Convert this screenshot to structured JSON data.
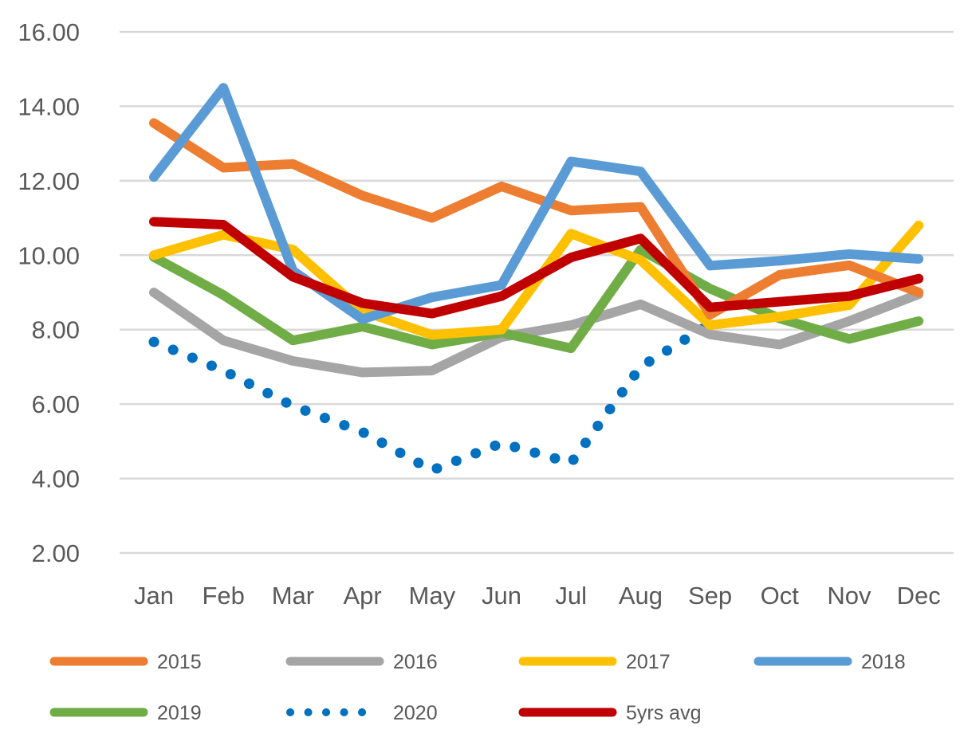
{
  "chart_data": {
    "type": "line",
    "title": "",
    "xlabel": "",
    "ylabel": "",
    "ylim": [
      2,
      16
    ],
    "yticks": [
      "2.00",
      "4.00",
      "6.00",
      "8.00",
      "10.00",
      "12.00",
      "14.00",
      "16.00"
    ],
    "ytick_values": [
      2,
      4,
      6,
      8,
      10,
      12,
      14,
      16
    ],
    "grid": true,
    "legend_position": "bottom",
    "categories": [
      "Jan",
      "Feb",
      "Mar",
      "Apr",
      "May",
      "Jun",
      "Jul",
      "Aug",
      "Sep",
      "Oct",
      "Nov",
      "Dec"
    ],
    "series": [
      {
        "name": "2015",
        "color": "#ED7D31",
        "style": "solid",
        "values": [
          13.55,
          12.35,
          12.45,
          11.6,
          11.0,
          11.85,
          11.2,
          11.3,
          8.4,
          9.47,
          9.73,
          9.0
        ]
      },
      {
        "name": "2016",
        "color": "#A5A5A5",
        "style": "solid",
        "values": [
          9.0,
          7.71,
          7.16,
          6.85,
          6.9,
          7.8,
          8.12,
          8.68,
          7.87,
          7.6,
          8.23,
          8.95
        ]
      },
      {
        "name": "2017",
        "color": "#FFC000",
        "style": "solid",
        "values": [
          10.0,
          10.55,
          10.15,
          8.5,
          7.86,
          8.0,
          10.58,
          9.87,
          8.12,
          8.35,
          8.66,
          10.8
        ]
      },
      {
        "name": "2018",
        "color": "#5B9BD5",
        "style": "solid",
        "values": [
          12.1,
          14.5,
          9.58,
          8.28,
          8.87,
          9.2,
          12.52,
          12.25,
          9.72,
          9.85,
          10.03,
          9.9
        ]
      },
      {
        "name": "2019",
        "color": "#70AD47",
        "style": "solid",
        "values": [
          9.95,
          8.93,
          7.71,
          8.08,
          7.6,
          7.92,
          7.5,
          10.15,
          9.1,
          8.3,
          7.75,
          8.23
        ]
      },
      {
        "name": "2020",
        "color": "#0070C0",
        "style": "dotted",
        "values": [
          7.67,
          6.9,
          5.95,
          5.25,
          4.22,
          4.95,
          4.42,
          7.0,
          8.15,
          null,
          null,
          null
        ]
      },
      {
        "name": "5yrs avg",
        "color": "#C00000",
        "style": "solid",
        "values": [
          10.9,
          10.82,
          9.42,
          8.71,
          8.43,
          8.9,
          9.94,
          10.45,
          8.6,
          8.75,
          8.9,
          9.37
        ]
      }
    ]
  }
}
